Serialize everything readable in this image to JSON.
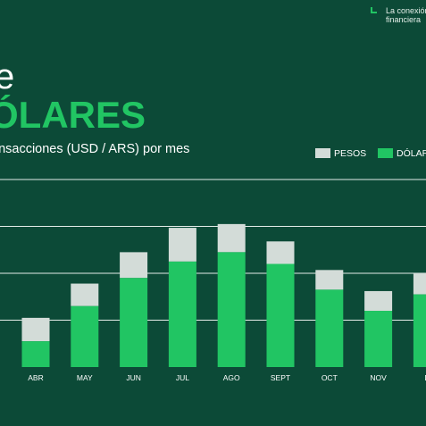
{
  "brand": {
    "line1": "La conexión",
    "line2": "financiera"
  },
  "headline": {
    "line1": "e",
    "line2": "ÓLARES"
  },
  "subtitle": "ansacciones (USD / ARS) por mes",
  "colors": {
    "background": "#0c4a37",
    "pesos": "#d3dcd8",
    "dolares": "#21c563",
    "grid": "#e4ece8",
    "tick_text": "#ffffff"
  },
  "chart_data": {
    "type": "bar",
    "stacked": true,
    "categories": [
      "ABR",
      "MAY",
      "JUN",
      "JUL",
      "AGO",
      "SEPT",
      "OCT",
      "NOV",
      "D"
    ],
    "series": [
      {
        "name": "DÓLAR",
        "values": [
          0.55,
          1.3,
          1.9,
          2.25,
          2.45,
          2.2,
          1.65,
          1.2,
          1.55
        ]
      },
      {
        "name": "PESOS",
        "values": [
          0.5,
          0.48,
          0.55,
          0.72,
          0.6,
          0.48,
          0.42,
          0.42,
          0.45
        ]
      }
    ],
    "legend": [
      "PESOS",
      "DÓLAR"
    ],
    "legend_position": "top-right",
    "ylim": [
      0,
      4
    ],
    "grid": true,
    "gridlines": [
      1,
      2,
      3,
      4
    ],
    "title": "",
    "xlabel": "",
    "ylabel": ""
  }
}
